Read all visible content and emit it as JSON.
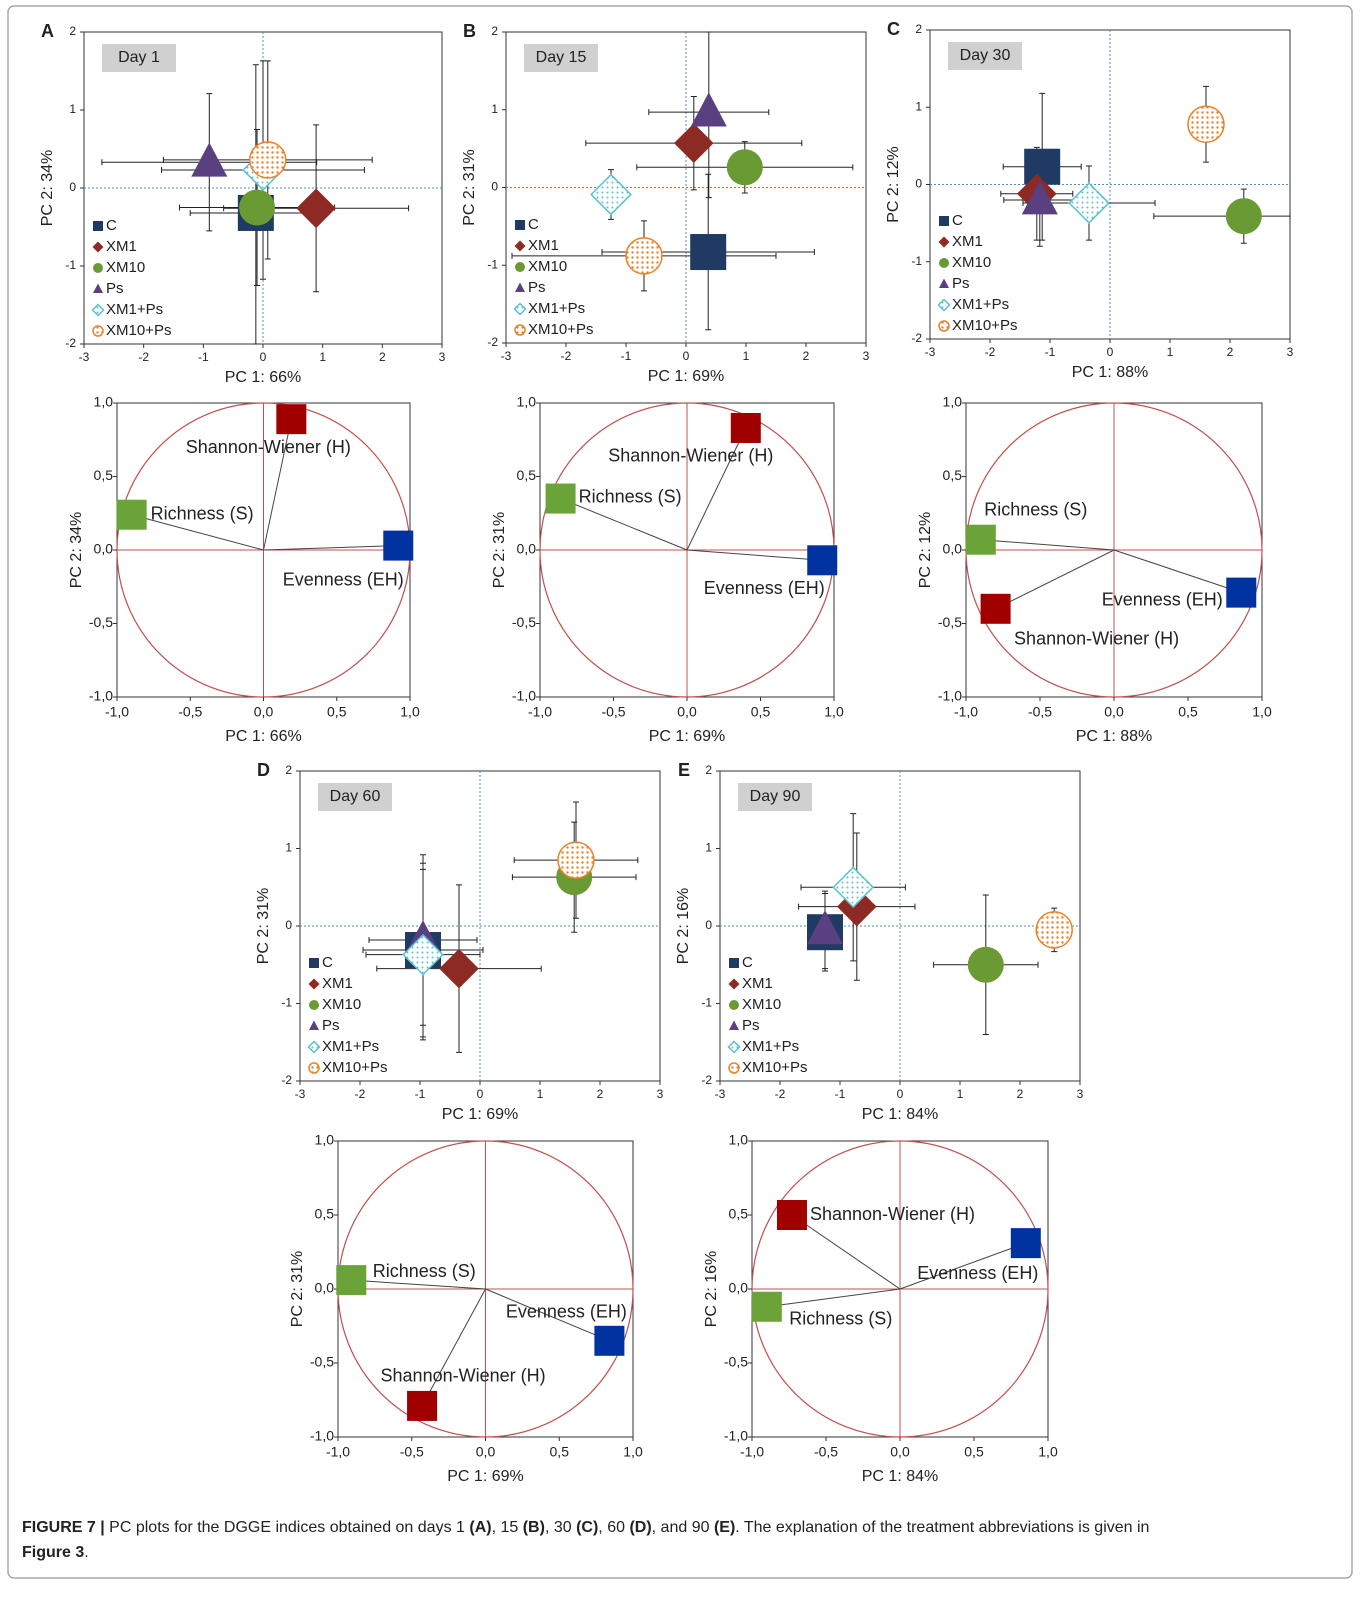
{
  "chart_data": [
    {
      "type": "scatter",
      "panel": "A",
      "title": "Day 1",
      "xlabel": "PC 1:  66%",
      "ylabel": "PC 2:  34%",
      "xlim": [
        -3,
        3
      ],
      "ylim": [
        -2,
        2
      ],
      "xticks": [
        -3,
        -2,
        -1,
        0,
        1,
        2,
        3
      ],
      "yticks": [
        -2,
        -1,
        0,
        1,
        2
      ],
      "series": [
        {
          "name": "C",
          "color": "#1f3b63",
          "marker": "square",
          "x": [
            -0.12
          ],
          "values": [
            -0.32
          ],
          "xerr": [
            1.1
          ],
          "yerr": [
            1.9
          ]
        },
        {
          "name": "XM1",
          "color": "#8e2a24",
          "marker": "diamond",
          "x": [
            0.89
          ],
          "values": [
            -0.26
          ],
          "xerr": [
            1.55
          ],
          "yerr": [
            1.07
          ]
        },
        {
          "name": "XM10",
          "color": "#6a9a33",
          "marker": "circle",
          "x": [
            -0.1
          ],
          "values": [
            -0.25
          ],
          "xerr": [
            1.3
          ],
          "yerr": [
            1.0
          ]
        },
        {
          "name": "Ps",
          "color": "#5a4080",
          "marker": "triangle",
          "x": [
            -0.9
          ],
          "values": [
            0.33
          ],
          "xerr": [
            1.8
          ],
          "yerr": [
            0.88
          ]
        },
        {
          "name": "XM1+Ps",
          "color": "#5bc0cf",
          "marker": "diamond-pattern",
          "x": [
            0.0
          ],
          "values": [
            0.23
          ],
          "xerr": [
            1.7
          ],
          "yerr": [
            1.4
          ]
        },
        {
          "name": "XM10+Ps",
          "color": "#e8832a",
          "marker": "circle-pattern",
          "x": [
            0.08
          ],
          "values": [
            0.36
          ],
          "xerr": [
            1.75
          ],
          "yerr": [
            1.27
          ]
        }
      ]
    },
    {
      "type": "loading",
      "xlabel": "PC 1:  66%",
      "ylabel": "PC 2:  34%",
      "xlim": [
        -1,
        1
      ],
      "ylim": [
        -1,
        1
      ],
      "xticks": [
        {
          "value": -1,
          "label": "-1,0"
        },
        {
          "value": -0.5,
          "label": "-0,5"
        },
        {
          "value": 0,
          "label": "0,0"
        },
        {
          "value": 0.5,
          "label": "0,5"
        },
        {
          "value": 1,
          "label": "1,0"
        }
      ],
      "yticks": [
        {
          "value": -1,
          "label": "-1,0"
        },
        {
          "value": -0.5,
          "label": "-0,5"
        },
        {
          "value": 0,
          "label": "0,0"
        },
        {
          "value": 0.5,
          "label": "0,5"
        },
        {
          "value": 1,
          "label": "1,0"
        }
      ],
      "points": [
        {
          "label": "Shannon-Wiener (H)",
          "color": "#a00000",
          "x": 0.19,
          "y": 0.89
        },
        {
          "label": "Richness (S)",
          "color": "#6aa338",
          "x": -0.9,
          "y": 0.24
        },
        {
          "label": "Evenness (EH)",
          "color": "#0033a0",
          "x": 0.92,
          "y": 0.03
        }
      ]
    },
    {
      "type": "scatter",
      "panel": "B",
      "title": "Day 15",
      "xlabel": "PC 1:  69%",
      "ylabel": "PC 2:  31%",
      "xlim": [
        -3,
        3
      ],
      "ylim": [
        -2,
        2
      ],
      "xticks": [
        -3,
        -2,
        -1,
        0,
        1,
        2,
        3
      ],
      "yticks": [
        -2,
        -1,
        0,
        1,
        2
      ],
      "series": [
        {
          "name": "C",
          "color": "#1f3b63",
          "marker": "square",
          "x": [
            0.37
          ],
          "values": [
            -0.83
          ],
          "xerr": [
            1.77
          ],
          "yerr": [
            1.0
          ]
        },
        {
          "name": "XM1",
          "color": "#8e2a24",
          "marker": "diamond",
          "x": [
            0.13
          ],
          "values": [
            0.57
          ],
          "xerr": [
            1.8
          ],
          "yerr": [
            0.6
          ]
        },
        {
          "name": "XM10",
          "color": "#6a9a33",
          "marker": "circle",
          "x": [
            0.98
          ],
          "values": [
            0.26
          ],
          "xerr": [
            1.8
          ],
          "yerr": [
            0.33
          ]
        },
        {
          "name": "Ps",
          "color": "#5a4080",
          "marker": "triangle",
          "x": [
            0.38
          ],
          "values": [
            0.97
          ],
          "xerr": [
            1.0
          ],
          "yerr": [
            1.1
          ]
        },
        {
          "name": "XM1+Ps",
          "color": "#5bc0cf",
          "marker": "diamond-pattern",
          "x": [
            -1.25
          ],
          "values": [
            -0.09
          ],
          "xerr": [
            0.1
          ],
          "yerr": [
            0.32
          ]
        },
        {
          "name": "XM10+Ps",
          "color": "#e8832a",
          "marker": "circle-pattern",
          "x": [
            -0.7
          ],
          "values": [
            -0.88
          ],
          "xerr": [
            2.2
          ],
          "yerr": [
            0.45
          ]
        }
      ]
    },
    {
      "type": "loading",
      "xlabel": "PC 1:  69%",
      "ylabel": "PC 2:  31%",
      "xlim": [
        -1,
        1
      ],
      "ylim": [
        -1,
        1
      ],
      "xticks": [
        {
          "value": -1,
          "label": "-1,0"
        },
        {
          "value": -0.5,
          "label": "-0,5"
        },
        {
          "value": 0,
          "label": "0,0"
        },
        {
          "value": 0.5,
          "label": "0,5"
        },
        {
          "value": 1,
          "label": "1,0"
        }
      ],
      "yticks": [
        {
          "value": -1,
          "label": "-1,0"
        },
        {
          "value": -0.5,
          "label": "-0,5"
        },
        {
          "value": 0,
          "label": "0,0"
        },
        {
          "value": 0.5,
          "label": "0,5"
        },
        {
          "value": 1,
          "label": "1,0"
        }
      ],
      "points": [
        {
          "label": "Shannon-Wiener (H)",
          "color": "#a00000",
          "x": 0.4,
          "y": 0.83
        },
        {
          "label": "Richness (S)",
          "color": "#6aa338",
          "x": -0.86,
          "y": 0.35
        },
        {
          "label": "Evenness (EH)",
          "color": "#0033a0",
          "x": 0.92,
          "y": -0.07
        }
      ]
    },
    {
      "type": "scatter",
      "panel": "C",
      "title": "Day 30",
      "xlabel": "PC 1:  88%",
      "ylabel": "PC 2:  12%",
      "xlim": [
        -3,
        3
      ],
      "ylim": [
        -2,
        2
      ],
      "xticks": [
        -3,
        -2,
        -1,
        0,
        1,
        2,
        3
      ],
      "yticks": [
        -2,
        -1,
        0,
        1,
        2
      ],
      "series": [
        {
          "name": "C",
          "color": "#1f3b63",
          "marker": "square",
          "x": [
            -1.13
          ],
          "values": [
            0.23
          ],
          "xerr": [
            0.65
          ],
          "yerr": [
            0.95
          ]
        },
        {
          "name": "XM1",
          "color": "#8e2a24",
          "marker": "diamond",
          "x": [
            -1.22
          ],
          "values": [
            -0.12
          ],
          "xerr": [
            0.6
          ],
          "yerr": [
            0.6
          ]
        },
        {
          "name": "XM10",
          "color": "#6a9a33",
          "marker": "circle",
          "x": [
            2.23
          ],
          "values": [
            -0.41
          ],
          "xerr": [
            1.5
          ],
          "yerr": [
            0.35
          ]
        },
        {
          "name": "Ps",
          "color": "#5a4080",
          "marker": "triangle",
          "x": [
            -1.17
          ],
          "values": [
            -0.2
          ],
          "xerr": [
            0.6
          ],
          "yerr": [
            0.6
          ]
        },
        {
          "name": "XM1+Ps",
          "color": "#5bc0cf",
          "marker": "diamond-pattern",
          "x": [
            -0.35
          ],
          "values": [
            -0.24
          ],
          "xerr": [
            1.1
          ],
          "yerr": [
            0.48
          ]
        },
        {
          "name": "XM10+Ps",
          "color": "#e8832a",
          "marker": "circle-pattern",
          "x": [
            1.6
          ],
          "values": [
            0.78
          ],
          "xerr": [
            0.1
          ],
          "yerr": [
            0.49
          ]
        }
      ]
    },
    {
      "type": "loading",
      "xlabel": "PC 1:  88%",
      "ylabel": "PC 2:  12%",
      "xlim": [
        -1,
        1
      ],
      "ylim": [
        -1,
        1
      ],
      "xticks": [
        {
          "value": -1,
          "label": "-1,0"
        },
        {
          "value": -0.5,
          "label": "-0,5"
        },
        {
          "value": 0,
          "label": "0,0"
        },
        {
          "value": 0.5,
          "label": "0,5"
        },
        {
          "value": 1,
          "label": "1,0"
        }
      ],
      "yticks": [
        {
          "value": -1,
          "label": "-1,0"
        },
        {
          "value": -0.5,
          "label": "-0,5"
        },
        {
          "value": 0,
          "label": "0,0"
        },
        {
          "value": 0.5,
          "label": "0,5"
        },
        {
          "value": 1,
          "label": "1,0"
        }
      ],
      "points": [
        {
          "label": "Shannon-Wiener (H)",
          "color": "#a00000",
          "x": -0.8,
          "y": -0.4
        },
        {
          "label": "Richness (S)",
          "color": "#6aa338",
          "x": -0.9,
          "y": 0.07
        },
        {
          "label": "Evenness (EH)",
          "color": "#0033a0",
          "x": 0.86,
          "y": -0.29
        }
      ]
    },
    {
      "type": "scatter",
      "panel": "D",
      "title": "Day 60",
      "xlabel": "PC 1:  69%",
      "ylabel": "PC 2:  31%",
      "xlim": [
        -3,
        3
      ],
      "ylim": [
        -2,
        2
      ],
      "xticks": [
        -3,
        -2,
        -1,
        0,
        1,
        2,
        3
      ],
      "yticks": [
        -2,
        -1,
        0,
        1,
        2
      ],
      "series": [
        {
          "name": "C",
          "color": "#1f3b63",
          "marker": "square",
          "x": [
            -0.95
          ],
          "values": [
            -0.31
          ],
          "xerr": [
            1.0
          ],
          "yerr": [
            1.12
          ]
        },
        {
          "name": "XM1",
          "color": "#8e2a24",
          "marker": "diamond",
          "x": [
            -0.35
          ],
          "values": [
            -0.55
          ],
          "xerr": [
            1.37
          ],
          "yerr": [
            1.08
          ]
        },
        {
          "name": "XM10",
          "color": "#6a9a33",
          "marker": "circle",
          "x": [
            1.57
          ],
          "values": [
            0.63
          ],
          "xerr": [
            1.03
          ],
          "yerr": [
            0.71
          ]
        },
        {
          "name": "Ps",
          "color": "#5a4080",
          "marker": "triangle",
          "x": [
            -0.95
          ],
          "values": [
            -0.18
          ],
          "xerr": [
            0.9
          ],
          "yerr": [
            1.1
          ]
        },
        {
          "name": "XM1+Ps",
          "color": "#5bc0cf",
          "marker": "diamond-pattern",
          "x": [
            -0.95
          ],
          "values": [
            -0.37
          ],
          "xerr": [
            0.95
          ],
          "yerr": [
            1.1
          ]
        },
        {
          "name": "XM10+Ps",
          "color": "#e8832a",
          "marker": "circle-pattern",
          "x": [
            1.6
          ],
          "values": [
            0.85
          ],
          "xerr": [
            1.03
          ],
          "yerr": [
            0.75
          ]
        }
      ]
    },
    {
      "type": "loading",
      "xlabel": "PC 1:  69%",
      "ylabel": "PC 2:  31%",
      "xlim": [
        -1,
        1
      ],
      "ylim": [
        -1,
        1
      ],
      "xticks": [
        {
          "value": -1,
          "label": "-1,0"
        },
        {
          "value": -0.5,
          "label": "-0,5"
        },
        {
          "value": 0,
          "label": "0,0"
        },
        {
          "value": 0.5,
          "label": "0,5"
        },
        {
          "value": 1,
          "label": "1,0"
        }
      ],
      "yticks": [
        {
          "value": -1,
          "label": "-1,0"
        },
        {
          "value": -0.5,
          "label": "-0,5"
        },
        {
          "value": 0,
          "label": "0,0"
        },
        {
          "value": 0.5,
          "label": "0,5"
        },
        {
          "value": 1,
          "label": "1,0"
        }
      ],
      "points": [
        {
          "label": "Shannon-Wiener (H)",
          "color": "#a00000",
          "x": -0.43,
          "y": -0.79
        },
        {
          "label": "Richness (S)",
          "color": "#6aa338",
          "x": -0.91,
          "y": 0.06
        },
        {
          "label": "Evenness (EH)",
          "color": "#0033a0",
          "x": 0.84,
          "y": -0.35
        }
      ]
    },
    {
      "type": "scatter",
      "panel": "E",
      "title": "Day 90",
      "xlabel": "PC 1:  84%",
      "ylabel": "PC 2:  16%",
      "xlim": [
        -3,
        3
      ],
      "ylim": [
        -2,
        2
      ],
      "xticks": [
        -3,
        -2,
        -1,
        0,
        1,
        2,
        3
      ],
      "yticks": [
        -2,
        -1,
        0,
        1,
        2
      ],
      "series": [
        {
          "name": "C",
          "color": "#1f3b63",
          "marker": "square",
          "x": [
            -1.25
          ],
          "values": [
            -0.08
          ],
          "xerr": [
            0.1
          ],
          "yerr": [
            0.5
          ]
        },
        {
          "name": "XM1",
          "color": "#8e2a24",
          "marker": "diamond",
          "x": [
            -0.72
          ],
          "values": [
            0.25
          ],
          "xerr": [
            0.97
          ],
          "yerr": [
            0.95
          ]
        },
        {
          "name": "XM10",
          "color": "#6a9a33",
          "marker": "circle",
          "x": [
            1.43
          ],
          "values": [
            -0.5
          ],
          "xerr": [
            0.87
          ],
          "yerr": [
            0.9
          ]
        },
        {
          "name": "Ps",
          "color": "#5a4080",
          "marker": "triangle",
          "x": [
            -1.25
          ],
          "values": [
            -0.05
          ],
          "xerr": [
            0.1
          ],
          "yerr": [
            0.5
          ]
        },
        {
          "name": "XM1+Ps",
          "color": "#5bc0cf",
          "marker": "diamond-pattern",
          "x": [
            -0.78
          ],
          "values": [
            0.5
          ],
          "xerr": [
            0.87
          ],
          "yerr": [
            0.95
          ]
        },
        {
          "name": "XM10+Ps",
          "color": "#e8832a",
          "marker": "circle-pattern",
          "x": [
            2.57
          ],
          "values": [
            -0.05
          ],
          "xerr": [
            0.1
          ],
          "yerr": [
            0.28
          ]
        }
      ]
    },
    {
      "type": "loading",
      "xlabel": "PC 1:  84%",
      "ylabel": "PC 2:  16%",
      "xlim": [
        -1,
        1
      ],
      "ylim": [
        -1,
        1
      ],
      "xticks": [
        {
          "value": -1,
          "label": "-1,0"
        },
        {
          "value": -0.5,
          "label": "-0,5"
        },
        {
          "value": 0,
          "label": "0,0"
        },
        {
          "value": 0.5,
          "label": "0,5"
        },
        {
          "value": 1,
          "label": "1,0"
        }
      ],
      "yticks": [
        {
          "value": -1,
          "label": "-1,0"
        },
        {
          "value": -0.5,
          "label": "-0,5"
        },
        {
          "value": 0,
          "label": "0,0"
        },
        {
          "value": 0.5,
          "label": "0,5"
        },
        {
          "value": 1,
          "label": "1,0"
        }
      ],
      "points": [
        {
          "label": "Shannon-Wiener (H)",
          "color": "#a00000",
          "x": -0.73,
          "y": 0.5
        },
        {
          "label": "Richness (S)",
          "color": "#6aa338",
          "x": -0.9,
          "y": -0.12
        },
        {
          "label": "Evenness (EH)",
          "color": "#0033a0",
          "x": 0.85,
          "y": 0.31
        }
      ]
    }
  ],
  "caption": [
    [
      {
        "text": "FIGURE 7 |",
        "bold": true
      },
      {
        "text": " PC plots for the DGGE indices obtained on days 1 "
      },
      {
        "text": "(A)",
        "bold": true
      },
      {
        "text": ", 15 "
      },
      {
        "text": "(B)",
        "bold": true
      },
      {
        "text": ", 30 "
      },
      {
        "text": "(C)",
        "bold": true
      },
      {
        "text": ", 60 "
      },
      {
        "text": "(D)",
        "bold": true
      },
      {
        "text": ", and 90 "
      },
      {
        "text": "(E)",
        "bold": true
      },
      {
        "text": ". The explanation of the treatment abbreviations is given in"
      }
    ],
    [
      {
        "text": "Figure 3",
        "bold": true
      },
      {
        "text": "."
      }
    ]
  ]
}
